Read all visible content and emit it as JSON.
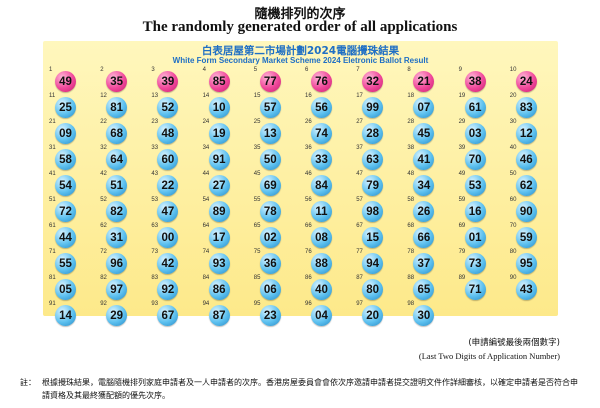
{
  "title_zh": "隨機排列的次序",
  "title_en": "The randomly generated order of all applications",
  "banner_zh": "白表居屋第二市場計劃2024電腦攪珠結果",
  "banner_en": "White Form Secondary Market Scheme 2024 Eletronic Ballot Result",
  "colors": {
    "pink": "#f0479a",
    "blue": "#5cc0ef",
    "panel": "#fdf0a0",
    "banner": "#1f6fc4"
  },
  "balls": [
    "49",
    "35",
    "39",
    "85",
    "77",
    "76",
    "32",
    "21",
    "38",
    "24",
    "25",
    "81",
    "52",
    "10",
    "57",
    "56",
    "99",
    "07",
    "61",
    "83",
    "09",
    "68",
    "48",
    "19",
    "13",
    "74",
    "28",
    "45",
    "03",
    "12",
    "58",
    "64",
    "60",
    "91",
    "50",
    "33",
    "63",
    "41",
    "70",
    "46",
    "54",
    "51",
    "22",
    "27",
    "69",
    "84",
    "79",
    "34",
    "53",
    "62",
    "72",
    "82",
    "47",
    "89",
    "78",
    "11",
    "98",
    "26",
    "16",
    "90",
    "44",
    "31",
    "00",
    "17",
    "02",
    "08",
    "15",
    "66",
    "01",
    "59",
    "55",
    "96",
    "42",
    "93",
    "36",
    "88",
    "94",
    "37",
    "73",
    "95",
    "05",
    "97",
    "92",
    "86",
    "06",
    "40",
    "80",
    "65",
    "71",
    "43",
    "14",
    "29",
    "67",
    "87",
    "23",
    "04",
    "20",
    "30"
  ],
  "pink_count": 10,
  "note_zh": "(申請編號最後兩個數字)",
  "note_en": "(Last Two Digits of Application Number)",
  "footnote_label": "註：",
  "footnote_text": "根據攪珠結果，電腦隨機排列家庭申請者及一人申請者的次序。香港房屋委員會會依次序邀請申請者提交證明文件作詳細審核，以確定申請者是否符合申請資格及其最終獲配額的優先次序。"
}
